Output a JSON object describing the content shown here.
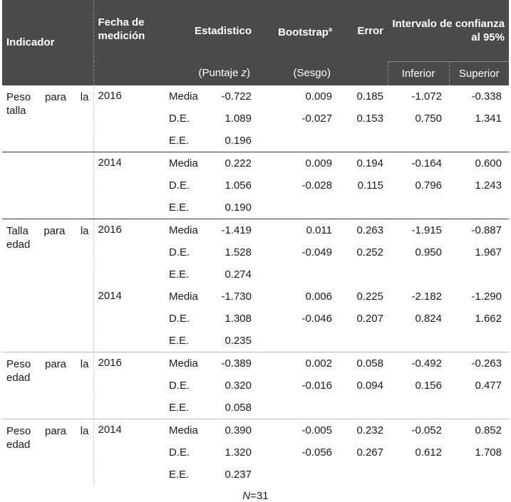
{
  "header": {
    "indicador": "Indicador",
    "fecha": "Fecha de medición",
    "estadistico": "Estadistico",
    "bootstrap": "Bootstrap",
    "bootstrap_sup": "a",
    "error": "Error",
    "intervalo": "Intervalo de confianza al 95%",
    "puntaje_prefix": "(Puntaje ",
    "puntaje_var": "z",
    "puntaje_suffix": ")",
    "sesgo": "(Sesgo)",
    "inferior": "Inferior",
    "superior": "Superior"
  },
  "groups": [
    {
      "indicador": "Peso para la talla",
      "fecha": "2016",
      "rows": [
        {
          "stat": "Media",
          "value": "-0.722",
          "sesgo": "0.009",
          "error": "0.185",
          "inf": "-1.072",
          "sup": "-0.338"
        },
        {
          "stat": "D.E.",
          "value": "1.089",
          "sesgo": "-0.027",
          "error": "0.153",
          "inf": "0.750",
          "sup": "1.341"
        },
        {
          "stat": "E.E.",
          "value": "0.196",
          "sesgo": "",
          "error": "",
          "inf": "",
          "sup": ""
        }
      ]
    },
    {
      "indicador": "",
      "fecha": "2014",
      "rows": [
        {
          "stat": "Media",
          "value": "0.222",
          "sesgo": "0.009",
          "error": "0.194",
          "inf": "-0.164",
          "sup": "0.600"
        },
        {
          "stat": "D.E.",
          "value": "1.056",
          "sesgo": "-0.028",
          "error": "0.115",
          "inf": "0.796",
          "sup": "1.243"
        },
        {
          "stat": "E.E.",
          "value": "0.190",
          "sesgo": "",
          "error": "",
          "inf": "",
          "sup": ""
        }
      ]
    },
    {
      "indicador": "Talla para la edad",
      "fecha": "2016",
      "rows": [
        {
          "stat": "Media",
          "value": "-1.419",
          "sesgo": "0.011",
          "error": "0.263",
          "inf": "-1.915",
          "sup": "-0.887"
        },
        {
          "stat": "D.E.",
          "value": "1.528",
          "sesgo": "-0.049",
          "error": "0.252",
          "inf": "0.950",
          "sup": "1.967"
        },
        {
          "stat": "E.E.",
          "value": "0.274",
          "sesgo": "",
          "error": "",
          "inf": "",
          "sup": ""
        }
      ]
    },
    {
      "indicador": "",
      "fecha": "2014",
      "rows": [
        {
          "stat": "Media",
          "value": "-1.730",
          "sesgo": "0.006",
          "error": "0.225",
          "inf": "-2.182",
          "sup": "-1.290"
        },
        {
          "stat": "D.E.",
          "value": "1.308",
          "sesgo": "-0.046",
          "error": "0.207",
          "inf": "0.824",
          "sup": "1.662"
        },
        {
          "stat": "E.E.",
          "value": "0.235",
          "sesgo": "",
          "error": "",
          "inf": "",
          "sup": ""
        }
      ]
    },
    {
      "indicador": "Peso para la edad",
      "fecha": "2016",
      "rows": [
        {
          "stat": "Media",
          "value": "-0.389",
          "sesgo": "0.002",
          "error": "0.058",
          "inf": "-0.492",
          "sup": "-0.263"
        },
        {
          "stat": "D.E.",
          "value": "0.320",
          "sesgo": "-0.016",
          "error": "0.094",
          "inf": "0.156",
          "sup": "0.477"
        },
        {
          "stat": "E.E.",
          "value": "0.058",
          "sesgo": "",
          "error": "",
          "inf": "",
          "sup": ""
        }
      ]
    },
    {
      "indicador": "Peso para la edad",
      "fecha": "2014",
      "rows": [
        {
          "stat": "Media",
          "value": "0.390",
          "sesgo": "-0.005",
          "error": "0.232",
          "inf": "-0.052",
          "sup": "0.852"
        },
        {
          "stat": "D.E.",
          "value": "1.320",
          "sesgo": "-0.056",
          "error": "0.267",
          "inf": "0.612",
          "sup": "1.708"
        },
        {
          "stat": "E.E.",
          "value": "0.237",
          "sesgo": "",
          "error": "",
          "inf": "",
          "sup": ""
        }
      ]
    }
  ],
  "footer": {
    "n_var": "N",
    "n_text": "=31"
  }
}
